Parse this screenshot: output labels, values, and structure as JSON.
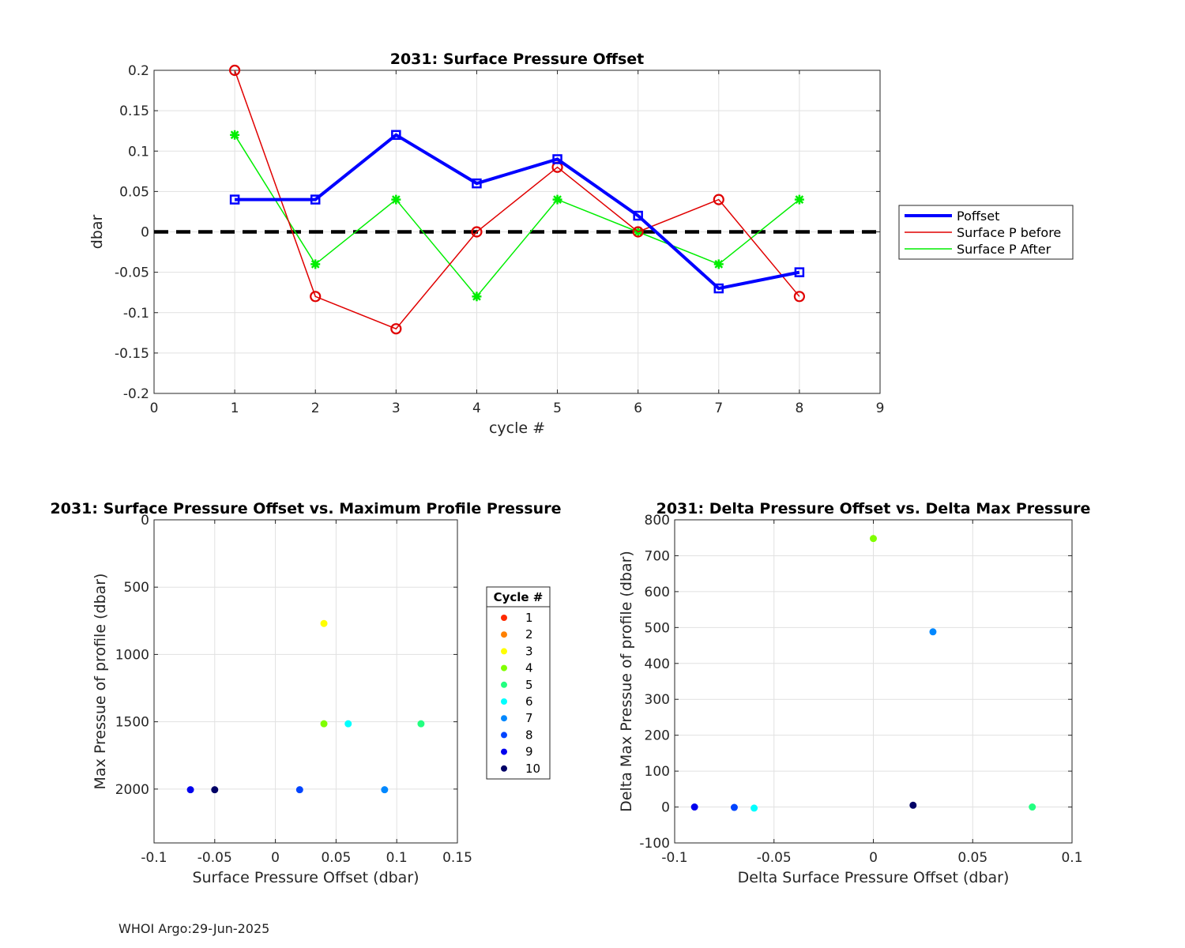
{
  "footer": "WHOI Argo:29-Jun-2025",
  "chart_data": [
    {
      "type": "line",
      "title": "2031: Surface Pressure Offset",
      "xlabel": "cycle #",
      "ylabel": "dbar",
      "xlim": [
        0,
        9
      ],
      "ylim": [
        -0.2,
        0.2
      ],
      "xticks": [
        0,
        1,
        2,
        3,
        4,
        5,
        6,
        7,
        8,
        9
      ],
      "xtick_labels": [
        "0",
        "1",
        "2",
        "3",
        "4",
        "5",
        "6",
        "7",
        "8",
        "9"
      ],
      "yticks": [
        0.2,
        0.15,
        0.1,
        0.05,
        0,
        -0.05,
        -0.1,
        -0.15,
        -0.2
      ],
      "ytick_labels": [
        "0.2",
        "0.15",
        "0.1",
        "0.05",
        "0",
        "-0.05",
        "-0.1",
        "-0.15",
        "-0.2"
      ],
      "grid": true,
      "legend_placement": "outside-right",
      "reference_line": {
        "y": 0,
        "style": "dashed",
        "color": "#000000"
      },
      "x": [
        1,
        2,
        3,
        4,
        5,
        6,
        7,
        8
      ],
      "series": [
        {
          "name": "Poffset",
          "color": "#0000ff",
          "marker": "square",
          "values": [
            0.04,
            0.04,
            0.12,
            0.06,
            0.09,
            0.02,
            -0.07,
            -0.05
          ]
        },
        {
          "name": "Surface P before",
          "color": "#e00000",
          "marker": "circle",
          "values": [
            0.2,
            -0.08,
            -0.12,
            0,
            0.08,
            0,
            0.04,
            -0.08
          ]
        },
        {
          "name": "Surface P After",
          "color": "#00ee00",
          "marker": "star",
          "values": [
            0.12,
            -0.04,
            0.04,
            -0.08,
            0.04,
            0,
            -0.04,
            0.04
          ]
        }
      ]
    },
    {
      "type": "scatter",
      "title": "2031: Surface Pressure Offset vs. Maximum Profile Pressure",
      "xlabel": "Surface Pressure Offset (dbar)",
      "ylabel": "Max Pressue of profile (dbar)",
      "xlim": [
        -0.1,
        0.15
      ],
      "ylim": [
        2400,
        0
      ],
      "y_reversed": true,
      "xticks": [
        -0.1,
        -0.05,
        0,
        0.05,
        0.1,
        0.15
      ],
      "xtick_labels": [
        "-0.1",
        "-0.05",
        "0",
        "0.05",
        "0.1",
        "0.15"
      ],
      "yticks": [
        0,
        500,
        1000,
        1500,
        2000
      ],
      "ytick_labels": [
        "0",
        "500",
        "1000",
        "1500",
        "2000"
      ],
      "grid": true,
      "legend_title": "Cycle #",
      "legend_placement": "outside-right",
      "points": [
        {
          "cycle": "1",
          "color": "#ff2a00",
          "x": null,
          "y": null
        },
        {
          "cycle": "2",
          "color": "#ff8000",
          "x": null,
          "y": null
        },
        {
          "cycle": "3",
          "color": "#ffff00",
          "x": 0.04,
          "y": 770
        },
        {
          "cycle": "4",
          "color": "#80ff00",
          "x": 0.04,
          "y": 1515
        },
        {
          "cycle": "5",
          "color": "#22ff80",
          "x": 0.12,
          "y": 1515
        },
        {
          "cycle": "6",
          "color": "#00ffff",
          "x": 0.06,
          "y": 1515
        },
        {
          "cycle": "7",
          "color": "#0088ff",
          "x": 0.09,
          "y": 2005
        },
        {
          "cycle": "8",
          "color": "#0044ff",
          "x": 0.02,
          "y": 2005
        },
        {
          "cycle": "9",
          "color": "#0000ee",
          "x": -0.07,
          "y": 2005
        },
        {
          "cycle": "10",
          "color": "#000066",
          "x": -0.05,
          "y": 2005
        }
      ]
    },
    {
      "type": "scatter",
      "title": "2031: Delta Pressure Offset vs. Delta Max Pressure",
      "xlabel": "Delta Surface Pressure Offset (dbar)",
      "ylabel": "Delta Max Pressue of profile (dbar)",
      "xlim": [
        -0.1,
        0.1
      ],
      "ylim": [
        -100,
        800
      ],
      "xticks": [
        -0.1,
        -0.05,
        0,
        0.05,
        0.1
      ],
      "xtick_labels": [
        "-0.1",
        "-0.05",
        "0",
        "0.05",
        "0.1"
      ],
      "yticks": [
        -100,
        0,
        100,
        200,
        300,
        400,
        500,
        600,
        700,
        800
      ],
      "ytick_labels": [
        "-100",
        "0",
        "100",
        "200",
        "300",
        "400",
        "500",
        "600",
        "700",
        "800"
      ],
      "grid": true,
      "points": [
        {
          "color": "#80ff00",
          "x": 0,
          "y": 748
        },
        {
          "color": "#0088ff",
          "x": 0.03,
          "y": 488
        },
        {
          "color": "#22ff80",
          "x": 0.08,
          "y": 0
        },
        {
          "color": "#000066",
          "x": 0.02,
          "y": 5
        },
        {
          "color": "#00ffff",
          "x": -0.06,
          "y": -3
        },
        {
          "color": "#0044ff",
          "x": -0.07,
          "y": -1
        },
        {
          "color": "#0000ee",
          "x": -0.09,
          "y": 0
        }
      ]
    }
  ]
}
